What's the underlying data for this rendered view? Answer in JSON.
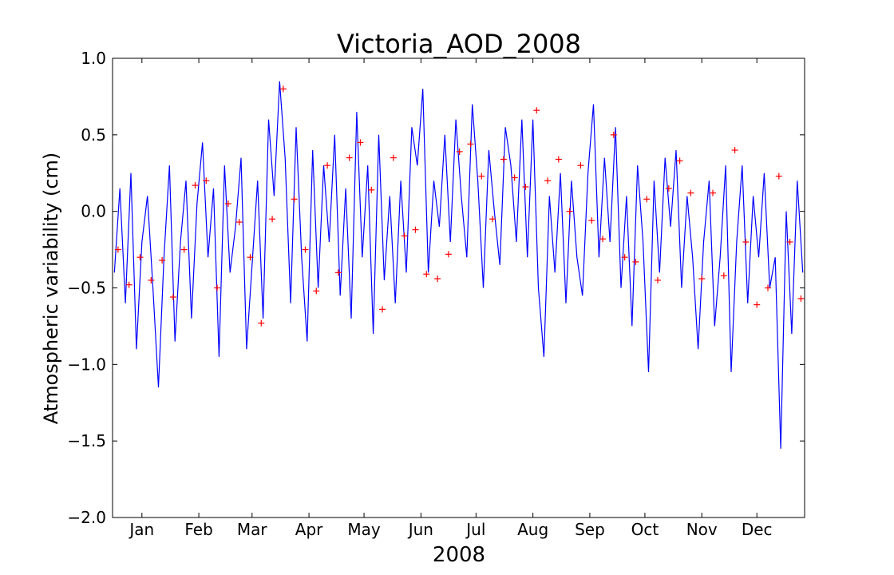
{
  "chart_data": {
    "type": "line",
    "title": "Victoria_AOD_2008",
    "xlabel": "2008",
    "ylabel": "Atmospheric variability (cm)",
    "ylim": [
      -2.0,
      1.0
    ],
    "yticks": [
      1.0,
      0.5,
      0.0,
      -0.5,
      -1.0,
      -1.5,
      -2.0
    ],
    "ytick_labels": [
      "1.0",
      "0.5",
      "0.0",
      "−0.5",
      "−1.0",
      "−1.5",
      "−2.0"
    ],
    "xlim": [
      "2007-12-16",
      "2008-12-27"
    ],
    "xticks": [
      "2008-01-01",
      "2008-02-01",
      "2008-03-01",
      "2008-04-01",
      "2008-05-01",
      "2008-06-01",
      "2008-07-01",
      "2008-08-01",
      "2008-09-01",
      "2008-10-01",
      "2008-11-01",
      "2008-12-01"
    ],
    "xtick_labels": [
      "Jan",
      "Feb",
      "Mar",
      "Apr",
      "May",
      "Jun",
      "Jul",
      "Aug",
      "Sep",
      "Oct",
      "Nov",
      "Dec"
    ],
    "grid": false,
    "legend": "none",
    "series": [
      {
        "style": "line",
        "color": "#0000ff",
        "x": [
          "2007-12-17",
          "2007-12-20",
          "2007-12-23",
          "2007-12-26",
          "2007-12-29",
          "2008-01-01",
          "2008-01-04",
          "2008-01-07",
          "2008-01-10",
          "2008-01-13",
          "2008-01-16",
          "2008-01-19",
          "2008-01-22",
          "2008-01-25",
          "2008-01-28",
          "2008-01-31",
          "2008-02-03",
          "2008-02-06",
          "2008-02-09",
          "2008-02-12",
          "2008-02-15",
          "2008-02-18",
          "2008-02-21",
          "2008-02-24",
          "2008-02-27",
          "2008-03-01",
          "2008-03-04",
          "2008-03-07",
          "2008-03-10",
          "2008-03-13",
          "2008-03-16",
          "2008-03-19",
          "2008-03-22",
          "2008-03-25",
          "2008-03-28",
          "2008-03-31",
          "2008-04-03",
          "2008-04-06",
          "2008-04-09",
          "2008-04-12",
          "2008-04-15",
          "2008-04-18",
          "2008-04-21",
          "2008-04-24",
          "2008-04-27",
          "2008-04-30",
          "2008-05-03",
          "2008-05-06",
          "2008-05-09",
          "2008-05-12",
          "2008-05-15",
          "2008-05-18",
          "2008-05-21",
          "2008-05-24",
          "2008-05-27",
          "2008-05-30",
          "2008-06-02",
          "2008-06-05",
          "2008-06-08",
          "2008-06-11",
          "2008-06-14",
          "2008-06-17",
          "2008-06-20",
          "2008-06-23",
          "2008-06-26",
          "2008-06-29",
          "2008-07-02",
          "2008-07-05",
          "2008-07-08",
          "2008-07-11",
          "2008-07-14",
          "2008-07-17",
          "2008-07-20",
          "2008-07-23",
          "2008-07-26",
          "2008-07-29",
          "2008-08-01",
          "2008-08-04",
          "2008-08-07",
          "2008-08-10",
          "2008-08-13",
          "2008-08-16",
          "2008-08-19",
          "2008-08-22",
          "2008-08-25",
          "2008-08-28",
          "2008-08-31",
          "2008-09-03",
          "2008-09-06",
          "2008-09-09",
          "2008-09-12",
          "2008-09-15",
          "2008-09-18",
          "2008-09-21",
          "2008-09-24",
          "2008-09-27",
          "2008-09-30",
          "2008-10-03",
          "2008-10-06",
          "2008-10-09",
          "2008-10-12",
          "2008-10-15",
          "2008-10-18",
          "2008-10-21",
          "2008-10-24",
          "2008-10-27",
          "2008-10-30",
          "2008-11-02",
          "2008-11-05",
          "2008-11-08",
          "2008-11-11",
          "2008-11-14",
          "2008-11-17",
          "2008-11-20",
          "2008-11-23",
          "2008-11-26",
          "2008-11-29",
          "2008-12-02",
          "2008-12-05",
          "2008-12-08",
          "2008-12-11",
          "2008-12-14",
          "2008-12-17",
          "2008-12-20",
          "2008-12-23",
          "2008-12-26"
        ],
        "y": [
          -0.4,
          0.15,
          -0.6,
          0.25,
          -0.9,
          -0.2,
          0.1,
          -0.5,
          -1.15,
          -0.3,
          0.3,
          -0.85,
          -0.2,
          0.2,
          -0.7,
          0.05,
          0.45,
          -0.3,
          0.15,
          -0.95,
          0.3,
          -0.4,
          -0.1,
          0.35,
          -0.9,
          -0.35,
          0.2,
          -0.7,
          0.6,
          0.1,
          0.85,
          0.35,
          -0.6,
          0.55,
          -0.3,
          -0.85,
          0.4,
          -0.5,
          0.3,
          -0.2,
          0.5,
          -0.55,
          0.15,
          -0.7,
          0.65,
          -0.3,
          0.3,
          -0.8,
          0.5,
          -0.45,
          0.1,
          -0.6,
          0.2,
          -0.4,
          0.55,
          0.3,
          0.8,
          -0.4,
          0.2,
          -0.1,
          0.5,
          -0.2,
          0.6,
          0.1,
          -0.3,
          0.7,
          0.2,
          -0.5,
          0.4,
          0.0,
          -0.35,
          0.55,
          0.3,
          -0.2,
          0.6,
          -0.3,
          0.6,
          -0.5,
          -0.95,
          0.1,
          -0.4,
          0.25,
          -0.6,
          0.2,
          -0.3,
          -0.55,
          0.25,
          0.7,
          -0.3,
          0.35,
          -0.2,
          0.55,
          -0.5,
          0.1,
          -0.75,
          0.3,
          -0.2,
          -1.05,
          0.2,
          -0.4,
          0.35,
          -0.1,
          0.4,
          -0.5,
          0.1,
          -0.3,
          -0.9,
          -0.2,
          0.2,
          -0.75,
          -0.3,
          0.3,
          -1.05,
          -0.2,
          0.3,
          -0.6,
          0.1,
          -0.3,
          0.25,
          -0.5,
          -0.3,
          -1.55,
          0.0,
          -0.8,
          0.2,
          -0.4
        ],
        "x_markers": [
          "2007-12-20",
          "2007-12-26",
          "2008-01-01",
          "2008-01-07",
          "2008-01-13",
          "2008-01-19",
          "2008-01-25",
          "2008-01-31",
          "2008-02-06",
          "2008-02-12",
          "2008-02-18",
          "2008-02-24",
          "2008-03-01",
          "2008-03-07",
          "2008-03-13",
          "2008-03-19",
          "2008-03-25",
          "2008-03-31",
          "2008-04-06",
          "2008-04-12",
          "2008-04-18",
          "2008-04-24",
          "2008-04-30",
          "2008-05-06",
          "2008-05-12",
          "2008-05-18",
          "2008-05-24",
          "2008-05-30",
          "2008-06-05",
          "2008-06-11",
          "2008-06-17",
          "2008-06-23",
          "2008-06-29",
          "2008-07-05",
          "2008-07-11",
          "2008-07-17",
          "2008-07-23",
          "2008-07-29",
          "2008-08-04",
          "2008-08-10",
          "2008-08-16",
          "2008-08-22",
          "2008-08-28",
          "2008-09-03",
          "2008-09-09",
          "2008-09-15",
          "2008-09-21",
          "2008-09-27",
          "2008-10-03",
          "2008-10-09",
          "2008-10-15",
          "2008-10-21",
          "2008-10-27",
          "2008-11-02",
          "2008-11-08",
          "2008-11-14",
          "2008-11-20",
          "2008-11-26",
          "2008-12-02",
          "2008-12-08",
          "2008-12-14",
          "2008-12-20",
          "2008-12-26"
        ],
        "y_markers": [
          -0.25,
          -0.48,
          -0.3,
          -0.45,
          -0.32,
          -0.56,
          -0.25,
          0.17,
          0.2,
          -0.5,
          0.05,
          -0.07,
          -0.3,
          -0.73,
          -0.05,
          0.8,
          0.08,
          -0.25,
          -0.52,
          0.3,
          -0.4,
          0.35,
          0.45,
          0.14,
          -0.64,
          0.35,
          -0.16,
          -0.12,
          -0.41,
          -0.44,
          -0.28,
          0.39,
          0.44,
          0.23,
          -0.05,
          0.34,
          0.22,
          0.16,
          0.66,
          0.2,
          0.34,
          0.0,
          0.3,
          -0.06,
          -0.18,
          0.5,
          -0.3,
          -0.33,
          0.08,
          -0.45,
          0.15,
          0.33,
          0.12,
          -0.44,
          0.12,
          -0.42,
          0.4,
          -0.2,
          -0.61,
          -0.5,
          0.23,
          -0.2,
          -0.57
        ]
      },
      {
        "style": "markers",
        "color": "#ff0000",
        "marker": "+",
        "x": [
          "2007-12-19",
          "2007-12-25",
          "2007-12-31",
          "2008-01-06",
          "2008-01-12",
          "2008-01-18",
          "2008-01-24",
          "2008-01-30",
          "2008-02-05",
          "2008-02-11",
          "2008-02-17",
          "2008-02-23",
          "2008-02-29",
          "2008-03-06",
          "2008-03-12",
          "2008-03-18",
          "2008-03-24",
          "2008-03-30",
          "2008-04-05",
          "2008-04-11",
          "2008-04-17",
          "2008-04-23",
          "2008-04-29",
          "2008-05-05",
          "2008-05-11",
          "2008-05-17",
          "2008-05-23",
          "2008-05-29",
          "2008-06-04",
          "2008-06-10",
          "2008-06-16",
          "2008-06-22",
          "2008-06-28",
          "2008-07-04",
          "2008-07-10",
          "2008-07-16",
          "2008-07-22",
          "2008-07-28",
          "2008-08-03",
          "2008-08-09",
          "2008-08-15",
          "2008-08-21",
          "2008-08-27",
          "2008-09-02",
          "2008-09-08",
          "2008-09-14",
          "2008-09-20",
          "2008-09-26",
          "2008-10-02",
          "2008-10-08",
          "2008-10-14",
          "2008-10-20",
          "2008-10-26",
          "2008-11-01",
          "2008-11-07",
          "2008-11-13",
          "2008-11-19",
          "2008-11-25",
          "2008-12-01",
          "2008-12-07",
          "2008-12-13",
          "2008-12-19",
          "2008-12-25"
        ],
        "y": [
          -0.25,
          -0.48,
          -0.3,
          -0.45,
          -0.32,
          -0.56,
          -0.25,
          0.17,
          0.2,
          -0.5,
          0.05,
          -0.07,
          -0.3,
          -0.73,
          -0.05,
          0.8,
          0.08,
          -0.25,
          -0.52,
          0.3,
          -0.4,
          0.35,
          0.45,
          0.14,
          -0.64,
          0.35,
          -0.16,
          -0.12,
          -0.41,
          -0.44,
          -0.28,
          0.39,
          0.44,
          0.23,
          -0.05,
          0.34,
          0.22,
          0.16,
          0.66,
          0.2,
          0.34,
          0.0,
          0.3,
          -0.06,
          -0.18,
          0.5,
          -0.3,
          -0.33,
          0.08,
          -0.45,
          0.15,
          0.33,
          0.12,
          -0.44,
          0.12,
          -0.42,
          0.4,
          -0.2,
          -0.61,
          -0.5,
          0.23,
          -0.2,
          -0.57
        ]
      }
    ]
  }
}
